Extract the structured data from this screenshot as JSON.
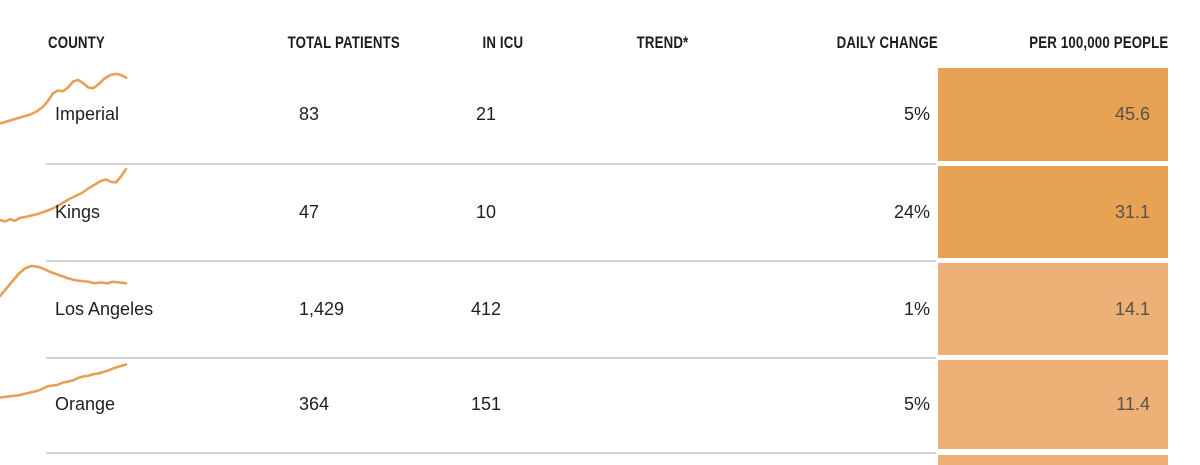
{
  "colors": {
    "cell_dark": "#e8a254",
    "cell_light": "#edb077",
    "sparkline": "#e6a055",
    "divider": "#d2d2d2",
    "header_text": "#1c1c1c",
    "body_text": "#1f1f1f",
    "cell_value_text": "#55524c"
  },
  "chart_data": {
    "type": "table",
    "columns": [
      "COUNTY",
      "TOTAL PATIENTS",
      "IN ICU",
      "TREND*",
      "DAILY CHANGE",
      "PER 100,000 PEOPLE"
    ],
    "rows": [
      {
        "county": "Imperial",
        "total_patients": "83",
        "in_icu": "21",
        "daily_change": "5%",
        "per_100k": "45.6",
        "cell_shade": "dark",
        "trend_description": "rising with wiggles, steep middle climb",
        "trend_points": [
          [
            0,
            37
          ],
          [
            6,
            35.5
          ],
          [
            12,
            34
          ],
          [
            18,
            32.5
          ],
          [
            24,
            31
          ],
          [
            29,
            29
          ],
          [
            34,
            26
          ],
          [
            38,
            22
          ],
          [
            42,
            17
          ],
          [
            46,
            15
          ],
          [
            50,
            15.5
          ],
          [
            54,
            13
          ],
          [
            58,
            9
          ],
          [
            62,
            8
          ],
          [
            66,
            10
          ],
          [
            70,
            13
          ],
          [
            74,
            13.5
          ],
          [
            78,
            11
          ],
          [
            83,
            7
          ],
          [
            88,
            4.5
          ],
          [
            93,
            4
          ],
          [
            97,
            5
          ],
          [
            100,
            6.5
          ]
        ]
      },
      {
        "county": "Kings",
        "total_patients": "47",
        "in_icu": "10",
        "daily_change": "24%",
        "per_100k": "31.1",
        "cell_shade": "dark",
        "trend_description": "steady wiggly rise, small dip then sharp uptick at end",
        "trend_points": [
          [
            0,
            36
          ],
          [
            4,
            37
          ],
          [
            8,
            35.5
          ],
          [
            12,
            36.5
          ],
          [
            16,
            34.5
          ],
          [
            20,
            34
          ],
          [
            25,
            33
          ],
          [
            30,
            32
          ],
          [
            35,
            30.5
          ],
          [
            40,
            29
          ],
          [
            45,
            27
          ],
          [
            50,
            24.5
          ],
          [
            55,
            22
          ],
          [
            60,
            20
          ],
          [
            65,
            18
          ],
          [
            70,
            15
          ],
          [
            75,
            12.5
          ],
          [
            80,
            10
          ],
          [
            84,
            9
          ],
          [
            88,
            10.5
          ],
          [
            92,
            11
          ],
          [
            96,
            7
          ],
          [
            100,
            2
          ]
        ]
      },
      {
        "county": "Los Angeles",
        "total_patients": "1,429",
        "in_icu": "412",
        "daily_change": "1%",
        "per_100k": "14.1",
        "cell_shade": "light",
        "trend_description": "rise to early hump then gentle decline and flattening",
        "trend_points": [
          [
            0,
            22
          ],
          [
            5,
            17
          ],
          [
            10,
            12
          ],
          [
            15,
            7
          ],
          [
            20,
            3.5
          ],
          [
            25,
            2
          ],
          [
            30,
            2.5
          ],
          [
            35,
            4
          ],
          [
            40,
            6
          ],
          [
            45,
            7.5
          ],
          [
            50,
            9
          ],
          [
            55,
            10.5
          ],
          [
            60,
            11.5
          ],
          [
            65,
            12
          ],
          [
            70,
            12.5
          ],
          [
            75,
            13.5
          ],
          [
            80,
            13
          ],
          [
            85,
            13.5
          ],
          [
            90,
            12.5
          ],
          [
            95,
            13
          ],
          [
            100,
            13.5
          ]
        ]
      },
      {
        "county": "Orange",
        "total_patients": "364",
        "in_icu": "151",
        "daily_change": "5%",
        "per_100k": "11.4",
        "cell_shade": "light",
        "trend_description": "gentle steady stepped rise",
        "trend_points": [
          [
            0,
            25
          ],
          [
            5,
            24.5
          ],
          [
            10,
            24
          ],
          [
            15,
            23.5
          ],
          [
            20,
            22.5
          ],
          [
            25,
            21.5
          ],
          [
            30,
            20.5
          ],
          [
            34,
            19
          ],
          [
            38,
            17.5
          ],
          [
            42,
            17
          ],
          [
            46,
            16.5
          ],
          [
            50,
            15
          ],
          [
            54,
            14.5
          ],
          [
            58,
            13.5
          ],
          [
            62,
            12
          ],
          [
            66,
            11
          ],
          [
            70,
            10.5
          ],
          [
            74,
            9.5
          ],
          [
            78,
            9
          ],
          [
            82,
            8
          ],
          [
            86,
            7
          ],
          [
            90,
            5.5
          ],
          [
            94,
            4.5
          ],
          [
            100,
            3
          ]
        ]
      }
    ],
    "partial_fifth_row": {
      "visible": true,
      "cell_shade": "light"
    }
  }
}
